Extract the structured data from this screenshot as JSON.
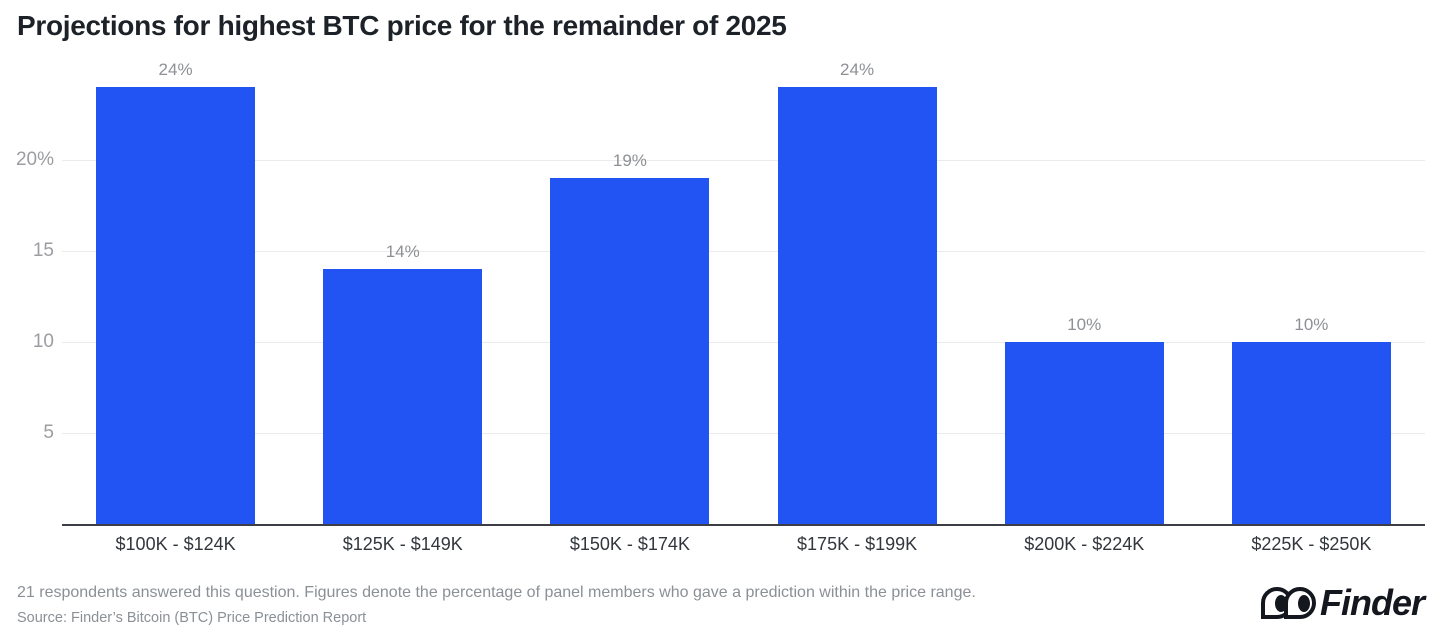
{
  "chart_data": {
    "type": "bar",
    "title": "Projections for highest BTC price for the remainder of 2025",
    "categories": [
      "$100K - $124K",
      "$125K - $149K",
      "$150K - $174K",
      "$175K - $199K",
      "$200K - $224K",
      "$225K - $250K"
    ],
    "values": [
      24,
      14,
      19,
      24,
      10,
      10
    ],
    "value_labels": [
      "24%",
      "14%",
      "19%",
      "24%",
      "10%",
      "10%"
    ],
    "yticks": [
      {
        "value": 5,
        "label": "5"
      },
      {
        "value": 10,
        "label": "10"
      },
      {
        "value": 15,
        "label": "15"
      },
      {
        "value": 20,
        "label": "20%"
      }
    ],
    "ylim": [
      0,
      25.5
    ],
    "xlabel": "",
    "ylabel": "",
    "grid": true,
    "legend": "none",
    "bar_color": "#2254f4",
    "gridline_color": "#ebebeb",
    "value_label_color": "#8d9094",
    "axis_label_color": "#33373d",
    "tick_label_color": "#9b9da1"
  },
  "footer": {
    "note": "21 respondents answered this question. Figures denote the percentage of panel members who gave a prediction within the price range.",
    "source": "Source: Finder’s Bitcoin (BTC) Price Prediction Report",
    "brand": "Finder"
  }
}
